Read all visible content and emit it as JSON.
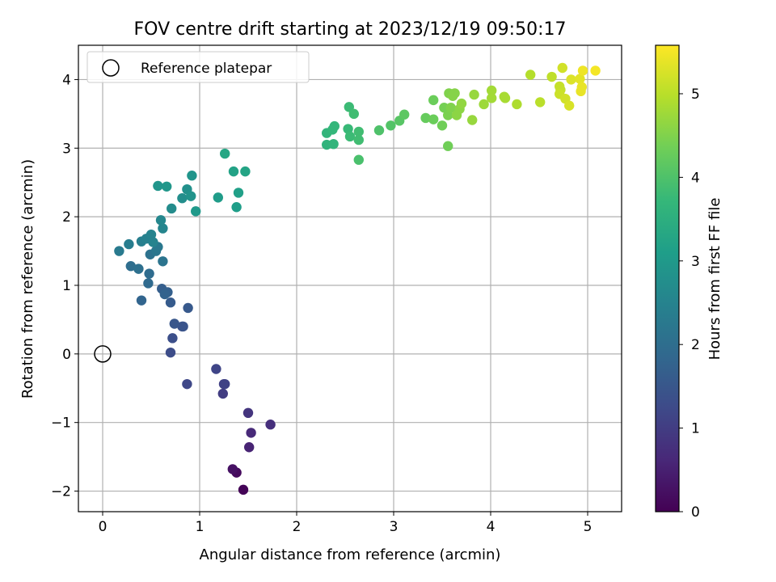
{
  "chart_data": {
    "type": "scatter",
    "title": "FOV centre drift starting at 2023/12/19 09:50:17",
    "xlabel": "Angular distance from reference (arcmin)",
    "ylabel": "Rotation from reference (arcmin)",
    "xlim": [
      -0.25,
      5.35
    ],
    "ylim": [
      -2.3,
      4.5
    ],
    "xticks": [
      0,
      1,
      2,
      3,
      4,
      5
    ],
    "yticks": [
      -2,
      -1,
      0,
      1,
      2,
      3,
      4
    ],
    "grid": true,
    "legend": {
      "placement": "top-left",
      "entries": [
        "Reference platepar"
      ]
    },
    "reference_point": {
      "x": 0,
      "y": 0,
      "label": "Reference platepar"
    },
    "colorbar": {
      "label": "Hours from first FF file",
      "colormap": "viridis",
      "range": [
        0,
        5.58
      ],
      "ticks": [
        0,
        1,
        2,
        3,
        4,
        5
      ]
    },
    "series": [
      {
        "points": [
          [
            1.45,
            -1.98,
            0.05
          ],
          [
            1.38,
            -1.73,
            0.15
          ],
          [
            1.34,
            -1.68,
            0.25
          ],
          [
            1.51,
            -1.36,
            0.55
          ],
          [
            1.53,
            -1.15,
            0.65
          ],
          [
            1.73,
            -1.03,
            0.75
          ],
          [
            1.5,
            -0.86,
            0.85
          ],
          [
            1.24,
            -0.58,
            1.0
          ],
          [
            1.25,
            -0.44,
            1.05
          ],
          [
            1.26,
            -0.44,
            1.1
          ],
          [
            1.17,
            -0.22,
            1.15
          ],
          [
            0.87,
            -0.44,
            1.2
          ],
          [
            0.7,
            0.02,
            1.3
          ],
          [
            0.72,
            0.23,
            1.35
          ],
          [
            0.82,
            0.4,
            1.4
          ],
          [
            0.83,
            0.4,
            1.45
          ],
          [
            0.74,
            0.44,
            1.5
          ],
          [
            0.88,
            0.67,
            1.55
          ],
          [
            0.7,
            0.75,
            1.6
          ],
          [
            0.61,
            0.95,
            1.65
          ],
          [
            0.67,
            0.9,
            1.7
          ],
          [
            0.64,
            0.87,
            1.75
          ],
          [
            0.4,
            0.78,
            1.8
          ],
          [
            0.47,
            1.03,
            1.9
          ],
          [
            0.48,
            1.17,
            1.95
          ],
          [
            0.29,
            1.28,
            2.0
          ],
          [
            0.37,
            1.24,
            2.05
          ],
          [
            0.49,
            1.45,
            2.1
          ],
          [
            0.62,
            1.35,
            2.15
          ],
          [
            0.55,
            1.5,
            2.2
          ],
          [
            0.57,
            1.56,
            2.25
          ],
          [
            0.17,
            1.5,
            2.3
          ],
          [
            0.27,
            1.6,
            2.35
          ],
          [
            0.4,
            1.64,
            2.4
          ],
          [
            0.45,
            1.68,
            2.45
          ],
          [
            0.5,
            1.74,
            2.5
          ],
          [
            0.52,
            1.63,
            2.5
          ],
          [
            0.62,
            1.83,
            2.55
          ],
          [
            0.6,
            1.95,
            2.6
          ],
          [
            0.71,
            2.12,
            2.7
          ],
          [
            0.82,
            2.27,
            2.75
          ],
          [
            0.87,
            2.4,
            2.8
          ],
          [
            0.91,
            2.3,
            2.85
          ],
          [
            0.92,
            2.6,
            2.9
          ],
          [
            0.57,
            2.45,
            2.9
          ],
          [
            0.66,
            2.44,
            2.95
          ],
          [
            0.96,
            2.08,
            3.0
          ],
          [
            1.19,
            2.28,
            3.05
          ],
          [
            1.38,
            2.14,
            3.1
          ],
          [
            1.4,
            2.35,
            3.15
          ],
          [
            1.35,
            2.66,
            3.2
          ],
          [
            1.47,
            2.66,
            3.25
          ],
          [
            1.26,
            2.92,
            3.3
          ],
          [
            2.31,
            3.05,
            3.6
          ],
          [
            2.38,
            3.06,
            3.65
          ],
          [
            2.31,
            3.22,
            3.65
          ],
          [
            2.37,
            3.27,
            3.7
          ],
          [
            2.39,
            3.32,
            3.7
          ],
          [
            2.53,
            3.28,
            3.75
          ],
          [
            2.55,
            3.17,
            3.8
          ],
          [
            2.64,
            3.12,
            3.85
          ],
          [
            2.64,
            3.24,
            3.85
          ],
          [
            2.54,
            3.6,
            3.8
          ],
          [
            2.59,
            3.5,
            3.85
          ],
          [
            2.64,
            2.83,
            3.95
          ],
          [
            2.85,
            3.26,
            4.0
          ],
          [
            2.97,
            3.33,
            4.05
          ],
          [
            3.06,
            3.4,
            4.1
          ],
          [
            3.11,
            3.49,
            4.15
          ],
          [
            3.33,
            3.44,
            4.25
          ],
          [
            3.41,
            3.42,
            4.3
          ],
          [
            3.41,
            3.7,
            4.3
          ],
          [
            3.5,
            3.33,
            4.35
          ],
          [
            3.56,
            3.03,
            4.35
          ],
          [
            3.52,
            3.59,
            4.4
          ],
          [
            3.56,
            3.48,
            4.45
          ],
          [
            3.59,
            3.59,
            4.5
          ],
          [
            3.57,
            3.8,
            4.5
          ],
          [
            3.61,
            3.76,
            4.55
          ],
          [
            3.63,
            3.8,
            4.55
          ],
          [
            3.65,
            3.48,
            4.6
          ],
          [
            3.68,
            3.57,
            4.6
          ],
          [
            3.7,
            3.65,
            4.65
          ],
          [
            3.81,
            3.41,
            4.7
          ],
          [
            3.83,
            3.78,
            4.7
          ],
          [
            3.93,
            3.64,
            4.75
          ],
          [
            4.01,
            3.84,
            4.8
          ],
          [
            4.01,
            3.73,
            4.8
          ],
          [
            4.14,
            3.75,
            4.85
          ],
          [
            4.15,
            3.73,
            4.85
          ],
          [
            4.27,
            3.64,
            4.9
          ],
          [
            4.41,
            4.07,
            4.95
          ],
          [
            4.51,
            3.67,
            5.0
          ],
          [
            4.63,
            4.04,
            5.05
          ],
          [
            4.71,
            3.9,
            5.1
          ],
          [
            4.72,
            3.85,
            5.1
          ],
          [
            4.71,
            3.79,
            5.15
          ],
          [
            4.74,
            4.17,
            5.2
          ],
          [
            4.77,
            3.72,
            5.2
          ],
          [
            4.81,
            3.62,
            5.25
          ],
          [
            4.83,
            4.0,
            5.3
          ],
          [
            4.92,
            4.01,
            5.35
          ],
          [
            4.94,
            3.89,
            5.4
          ],
          [
            4.93,
            3.83,
            5.4
          ],
          [
            4.95,
            4.13,
            5.45
          ],
          [
            5.08,
            4.13,
            5.5
          ]
        ]
      }
    ]
  }
}
